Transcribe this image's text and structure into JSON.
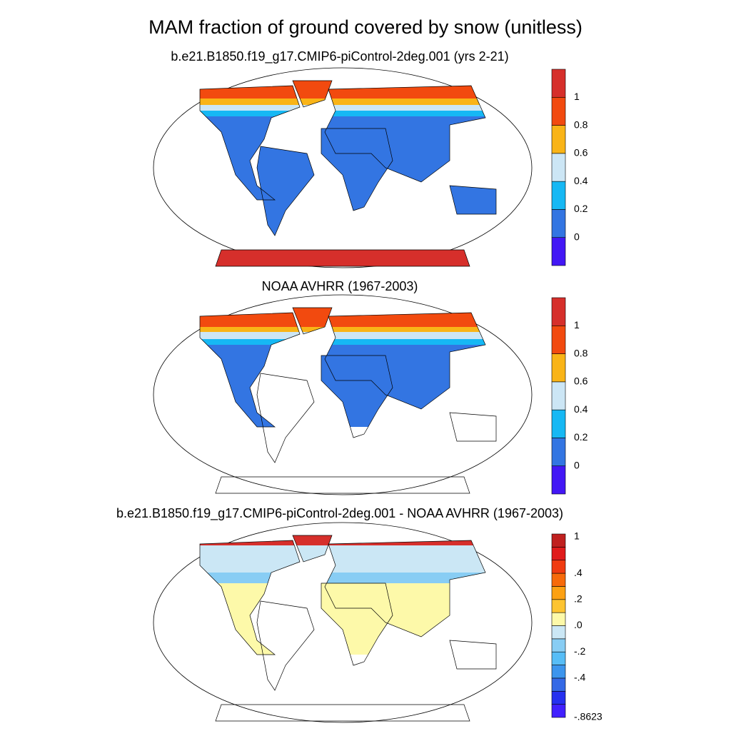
{
  "title": "MAM fraction of ground covered by snow (unitless)",
  "panels": [
    {
      "title": "b.e21.B1850.f19_g17.CMIP6-piControl-2deg.001 (yrs 2-21)",
      "colorbar": {
        "colors": [
          "#4317f5",
          "#3375e2",
          "#16b8f4",
          "#cce6f5",
          "#f9b417",
          "#f24a0f",
          "#d62f2b"
        ],
        "ticks": [
          0,
          0.2,
          0.4,
          0.6,
          0.8,
          1
        ]
      }
    },
    {
      "title": "NOAA AVHRR (1967-2003)",
      "colorbar": {
        "colors": [
          "#4317f5",
          "#3375e2",
          "#16b8f4",
          "#cce6f5",
          "#f9b417",
          "#f24a0f",
          "#d62f2b"
        ],
        "ticks": [
          0,
          0.2,
          0.4,
          0.6,
          0.8,
          1
        ]
      }
    },
    {
      "title": "b.e21.B1850.f19_g17.CMIP6-piControl-2deg.001 - NOAA AVHRR (1967-2003)",
      "colorbar": {
        "colors": [
          "#4120ff",
          "#2630f0",
          "#3469e6",
          "#3c95ed",
          "#57bdf6",
          "#88cdf4",
          "#cbe7f5",
          "#fdf9a9",
          "#fdc431",
          "#fca113",
          "#f76a0a",
          "#f03b10",
          "#e01b1b",
          "#c0201f"
        ],
        "ticks": [
          {
            "value": -0.8623,
            "label": "-.8623"
          },
          {
            "value": -0.4,
            "label": "-.4"
          },
          {
            "value": -0.2,
            "label": "-.2"
          },
          {
            "value": 0,
            "label": ".0"
          },
          {
            "value": 0.2,
            "label": ".2"
          },
          {
            "value": 0.4,
            "label": ".4"
          },
          1
        ]
      }
    }
  ]
}
